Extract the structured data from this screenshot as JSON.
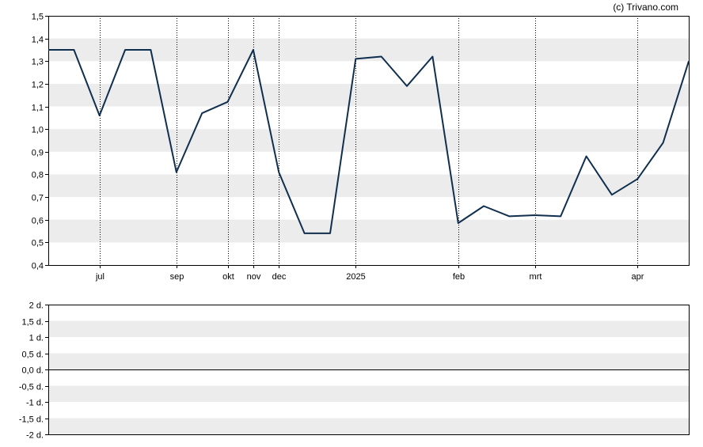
{
  "credit": "(c) Trivano.com",
  "colors": {
    "line": "#102f4f",
    "band": "#ececec",
    "frame": "#000000",
    "vgrid": "#000000"
  },
  "chart_data": [
    {
      "type": "line",
      "panel": "main",
      "ylim": [
        0.4,
        1.5
      ],
      "y_ticks": [
        "0,4",
        "0,5",
        "0,6",
        "0,7",
        "0,8",
        "0,9",
        "1,0",
        "1,1",
        "1,2",
        "1,3",
        "1,4",
        "1,5"
      ],
      "x_labels": [
        {
          "label": "jul",
          "pos": 2
        },
        {
          "label": "sep",
          "pos": 5
        },
        {
          "label": "okt",
          "pos": 7
        },
        {
          "label": "nov",
          "pos": 8
        },
        {
          "label": "dec",
          "pos": 9
        },
        {
          "label": "2025",
          "pos": 12
        },
        {
          "label": "feb",
          "pos": 16
        },
        {
          "label": "mrt",
          "pos": 19
        },
        {
          "label": "apr",
          "pos": 23
        }
      ],
      "x_range": [
        0,
        25
      ],
      "grid": "horizontal bands with dotted vertical lines at month labels",
      "series": [
        {
          "x": [
            0,
            1,
            2,
            3,
            4,
            5,
            6,
            7,
            8,
            9,
            10,
            11,
            12,
            13,
            14,
            15,
            16,
            17,
            18,
            19,
            20,
            21,
            22,
            23,
            24,
            25
          ],
          "values": [
            1.35,
            1.35,
            1.06,
            1.35,
            1.35,
            0.81,
            1.07,
            1.12,
            1.35,
            0.81,
            0.54,
            0.54,
            1.31,
            1.32,
            1.19,
            1.32,
            0.585,
            0.66,
            0.615,
            0.62,
            0.615,
            0.88,
            0.71,
            0.78,
            0.94,
            1.3
          ]
        }
      ]
    },
    {
      "type": "line",
      "panel": "lower",
      "ylim": [
        -2,
        2
      ],
      "y_ticks": [
        "-2 d.",
        "-1,5 d.",
        "-1 d.",
        "-0,5 d.",
        "0,0 d.",
        "0,5 d.",
        "1 d.",
        "1,5 d.",
        "2 d."
      ],
      "series": []
    }
  ]
}
